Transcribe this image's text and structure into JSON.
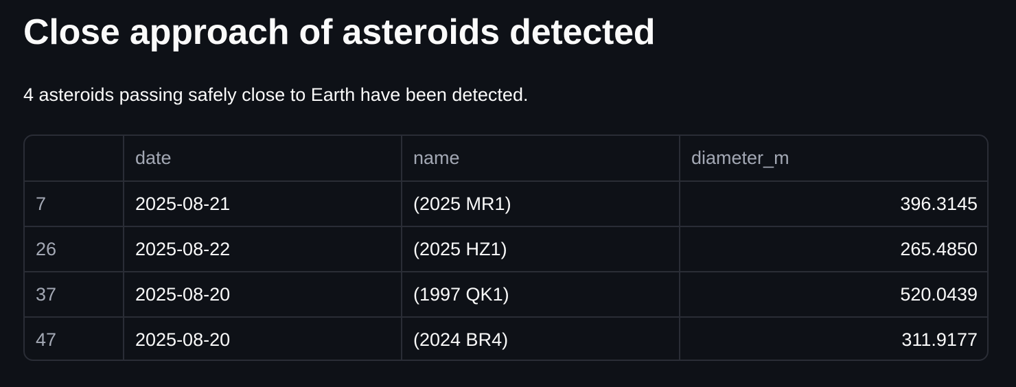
{
  "title": "Close approach of asteroids detected",
  "subtitle": "4 asteroids passing safely close to Earth have been detected.",
  "table": {
    "columns": [
      "",
      "date",
      "name",
      "diameter_m"
    ],
    "rows": [
      {
        "index": "7",
        "date": "2025-08-21",
        "name": "(2025 MR1)",
        "diameter_m": "396.3145"
      },
      {
        "index": "26",
        "date": "2025-08-22",
        "name": "(2025 HZ1)",
        "diameter_m": "265.4850"
      },
      {
        "index": "37",
        "date": "2025-08-20",
        "name": "(1997 QK1)",
        "diameter_m": "520.0439"
      },
      {
        "index": "47",
        "date": "2025-08-20",
        "name": "(2024 BR4)",
        "diameter_m": "311.9177"
      }
    ]
  },
  "colors": {
    "background": "#0e1117",
    "text": "#fafafa",
    "muted_text": "#a3a8b4",
    "border": "#2a2d36"
  }
}
